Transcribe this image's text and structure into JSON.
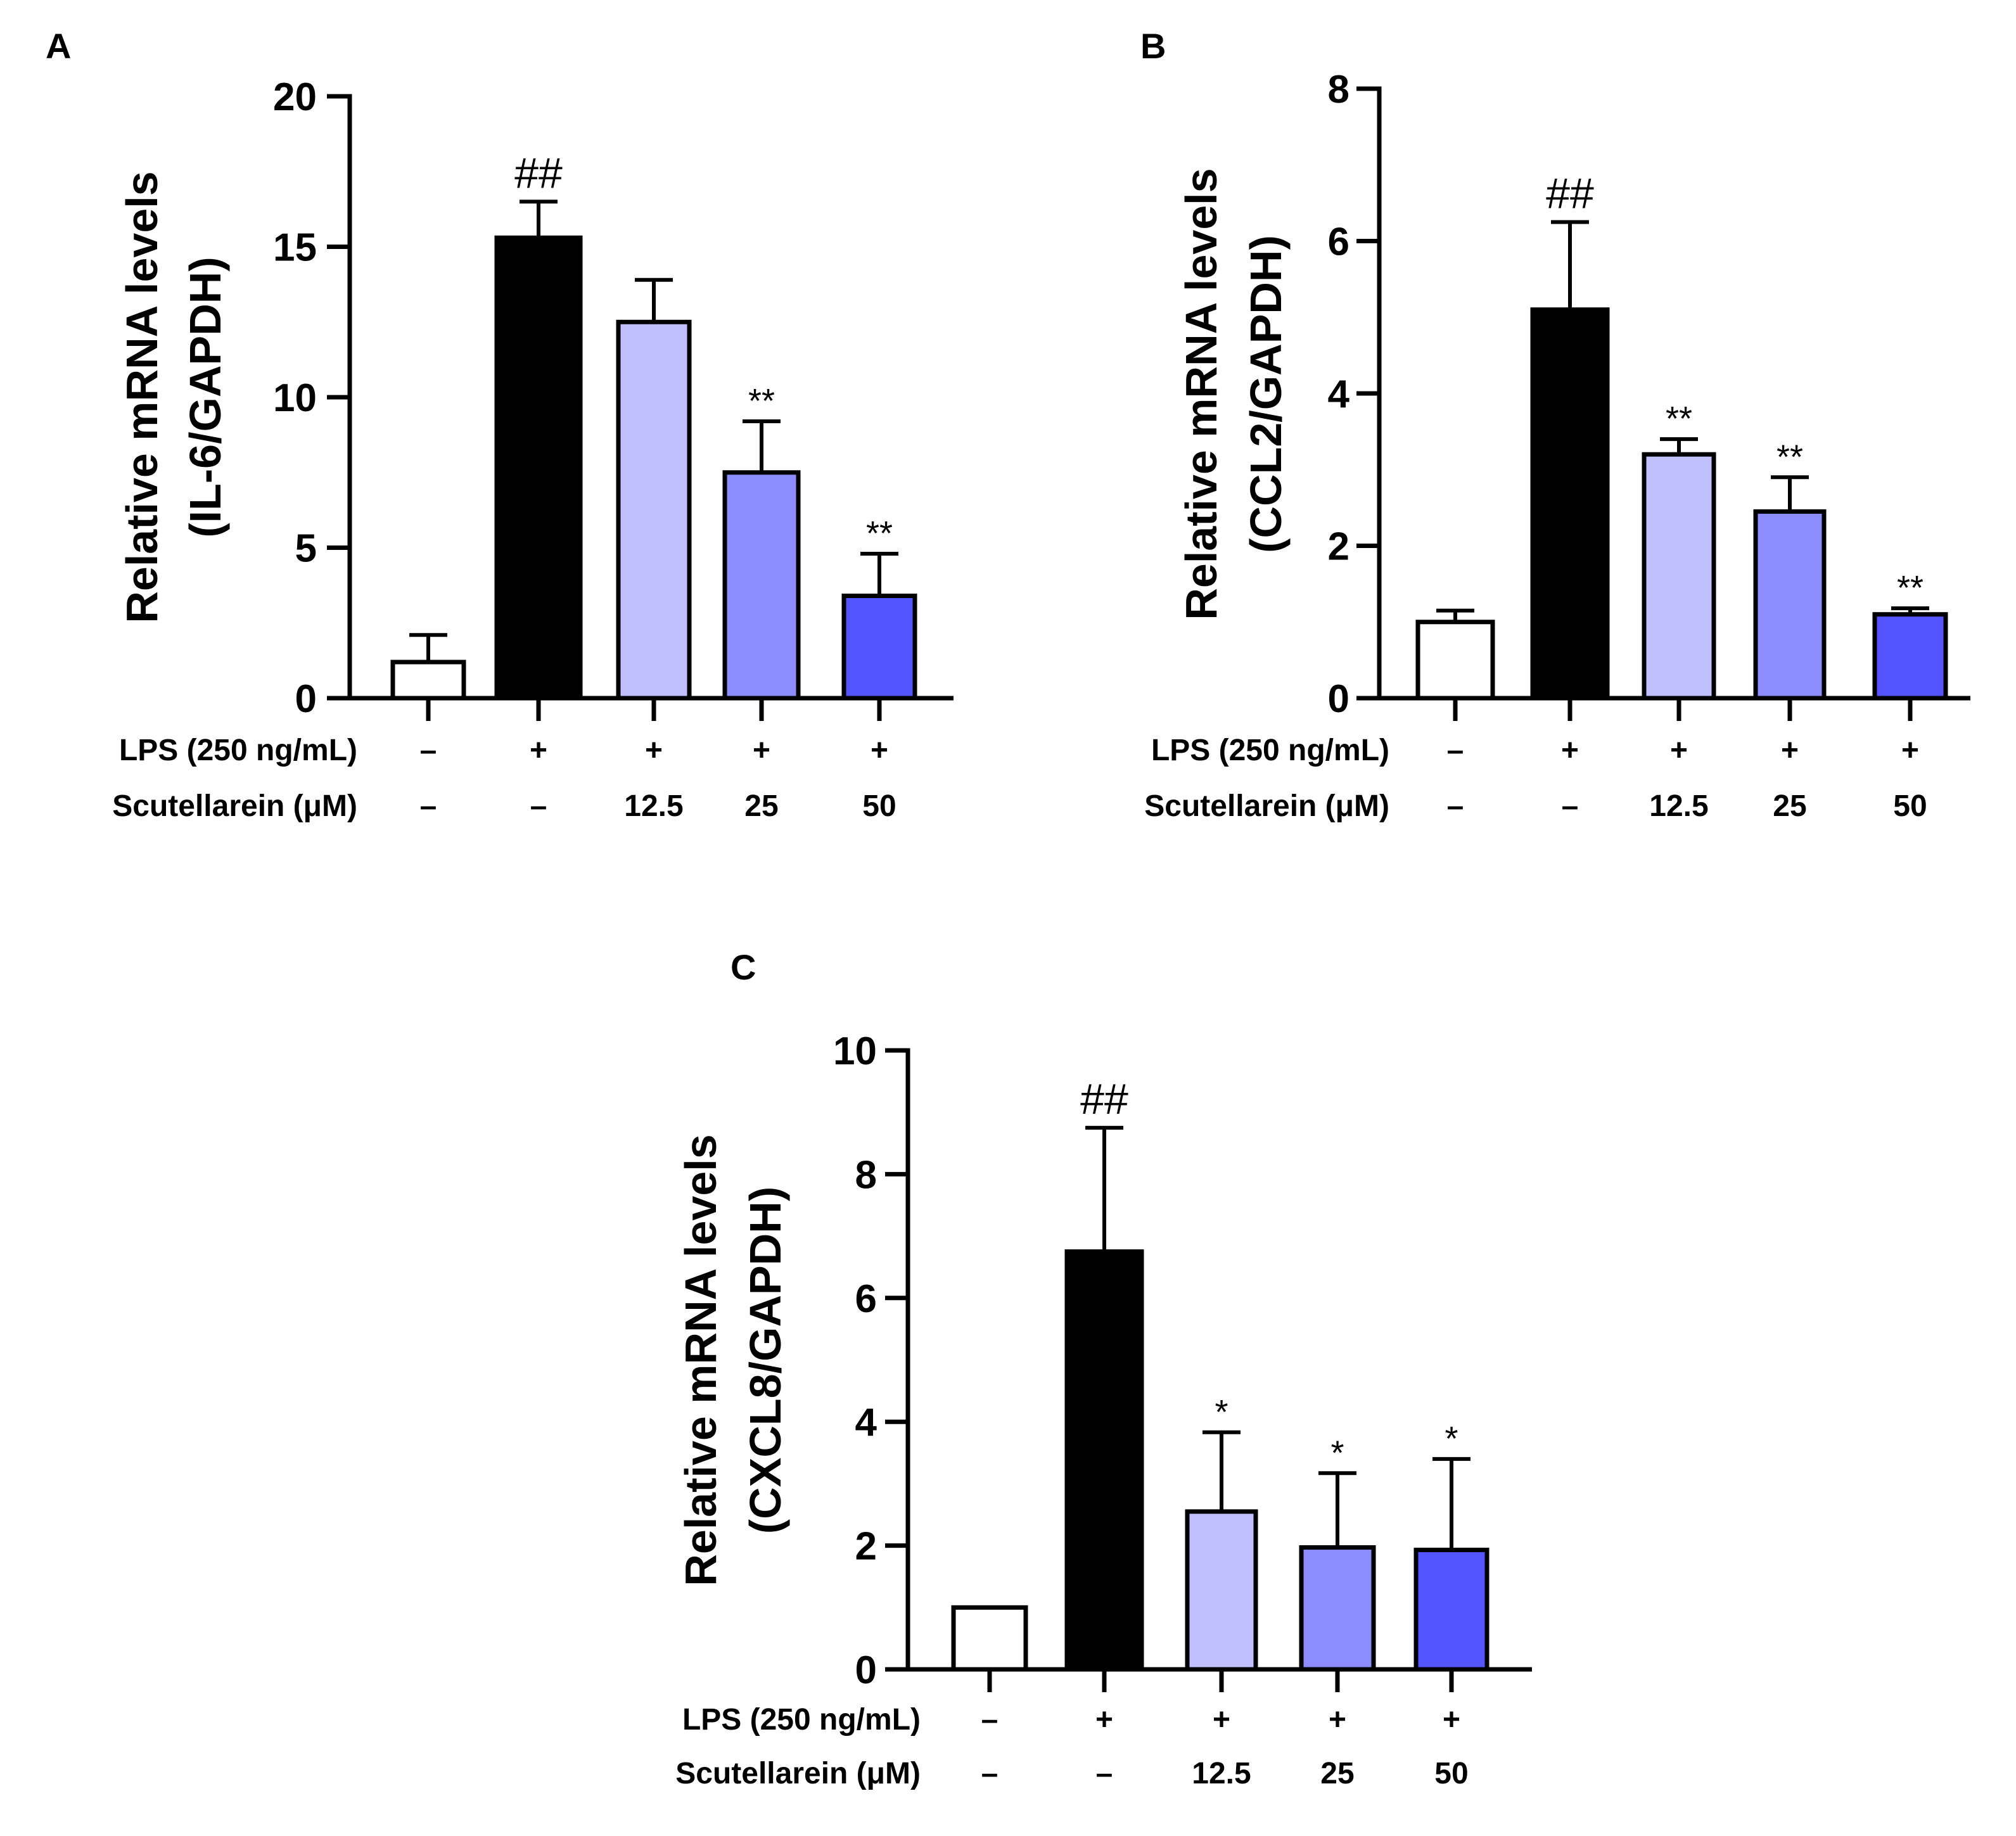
{
  "figure": {
    "row_labels": [
      "LPS (250 ng/mL)",
      "Scutellarein (μM)"
    ]
  },
  "chart_data": [
    {
      "type": "bar",
      "panel": "A",
      "title": "",
      "ylabel": [
        "Relative mRNA levels",
        "(IL-6/GAPDH)"
      ],
      "ylim": [
        0,
        20
      ],
      "yticks": [
        0,
        5,
        10,
        15,
        20
      ],
      "lps": [
        "–",
        "+",
        "+",
        "+",
        "+"
      ],
      "scutellarein": [
        "–",
        "–",
        "12.5",
        "25",
        "50"
      ],
      "values": [
        1.2,
        15.3,
        12.5,
        7.5,
        3.4
      ],
      "errors": [
        0.9,
        1.2,
        1.4,
        1.7,
        1.4
      ],
      "significance": [
        "",
        "##",
        "",
        "**",
        "**"
      ],
      "colors": [
        "#ffffff",
        "#000000",
        "#c0c0ff",
        "#8c8cff",
        "#5555ff"
      ]
    },
    {
      "type": "bar",
      "panel": "B",
      "title": "",
      "ylabel": [
        "Relative mRNA levels",
        "(CCL2/GAPDH)"
      ],
      "ylim": [
        0,
        8
      ],
      "yticks": [
        0,
        2,
        4,
        6,
        8
      ],
      "lps": [
        "–",
        "+",
        "+",
        "+",
        "+"
      ],
      "scutellarein": [
        "–",
        "–",
        "12.5",
        "25",
        "50"
      ],
      "values": [
        1.0,
        5.1,
        3.2,
        2.45,
        1.1
      ],
      "errors": [
        0.15,
        1.15,
        0.2,
        0.45,
        0.08
      ],
      "significance": [
        "",
        "##",
        "**",
        "**",
        "**"
      ],
      "colors": [
        "#ffffff",
        "#000000",
        "#c0c0ff",
        "#8c8cff",
        "#5555ff"
      ]
    },
    {
      "type": "bar",
      "panel": "C",
      "title": "",
      "ylabel": [
        "Relative mRNA levels",
        "(CXCL8/GAPDH)"
      ],
      "ylim": [
        0,
        10
      ],
      "yticks": [
        0,
        2,
        4,
        6,
        8,
        10
      ],
      "lps": [
        "–",
        "+",
        "+",
        "+",
        "+"
      ],
      "scutellarein": [
        "–",
        "–",
        "12.5",
        "25",
        "50"
      ],
      "values": [
        1.0,
        6.75,
        2.55,
        1.97,
        1.93
      ],
      "errors": [
        0.0,
        2.0,
        1.28,
        1.2,
        1.47
      ],
      "significance": [
        "",
        "##",
        "*",
        "*",
        "*"
      ],
      "colors": [
        "#ffffff",
        "#000000",
        "#c0c0ff",
        "#8c8cff",
        "#5555ff"
      ]
    }
  ]
}
